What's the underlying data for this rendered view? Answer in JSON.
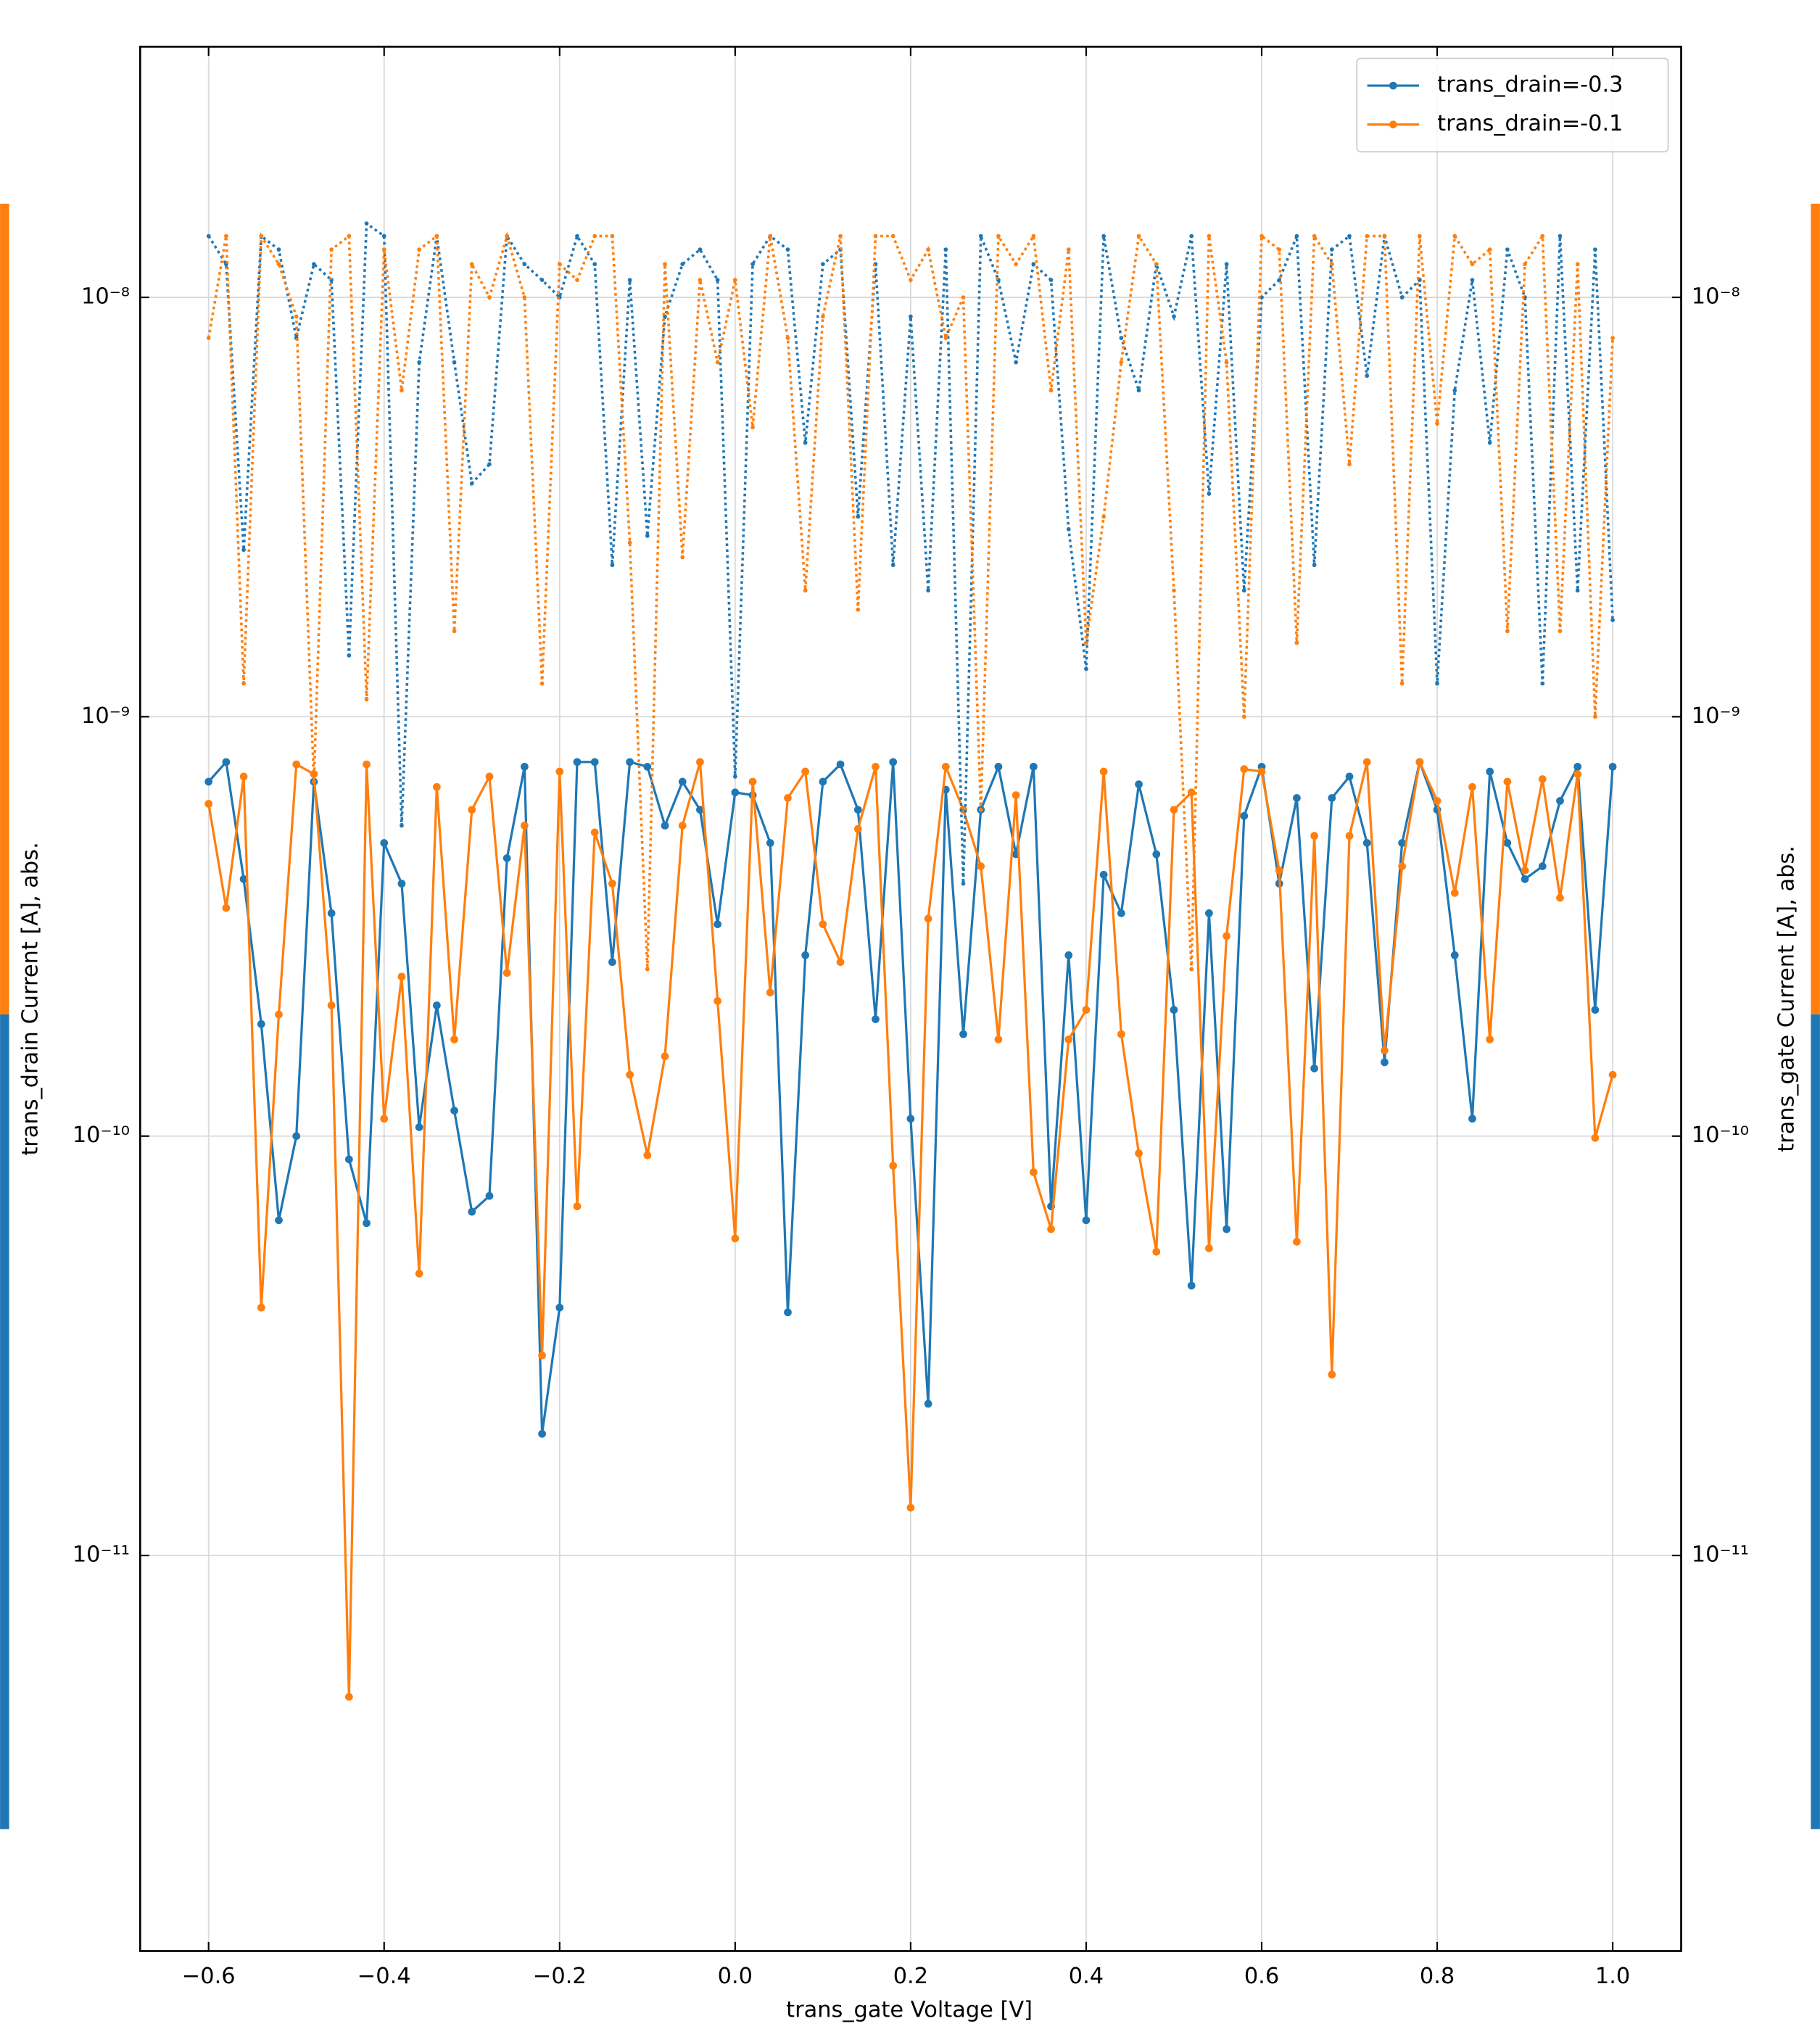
{
  "chart_data": {
    "type": "line",
    "xlabel": "trans_gate Voltage [V]",
    "ylabel": "trans_drain Current [A], abs.",
    "y2label": "trans_gate Current [A], abs.",
    "yscale": "log",
    "grid": true,
    "legend": "upper right",
    "xlim": [
      -0.678,
      1.078
    ],
    "ylim": [
      1.14e-12,
      3.96e-08
    ],
    "y2lim": [
      1.14e-12,
      3.96e-08
    ],
    "xticks": [
      {
        "value": -0.6,
        "label": "−0.6"
      },
      {
        "value": -0.4,
        "label": "−0.4"
      },
      {
        "value": -0.2,
        "label": "−0.2"
      },
      {
        "value": 0,
        "label": "0.0"
      },
      0.2,
      0.4,
      0.6,
      0.8,
      {
        "value": 1,
        "label": "1.0"
      }
    ],
    "yticks": [
      {
        "value": 1e-11,
        "label": "10⁻¹¹"
      },
      {
        "value": 1e-10,
        "label": "10⁻¹⁰"
      },
      {
        "value": 1e-09,
        "label": "10⁻⁹"
      },
      {
        "value": 1e-08,
        "label": "10⁻⁸"
      }
    ],
    "y2ticks": [
      {
        "value": 1e-11,
        "label": "10⁻¹¹"
      },
      {
        "value": 1e-10,
        "label": "10⁻¹⁰"
      },
      {
        "value": 1e-09,
        "label": "10⁻⁹"
      },
      {
        "value": 1e-08,
        "label": "10⁻⁸"
      }
    ],
    "x": [
      -0.6,
      -0.58,
      -0.56,
      -0.54,
      -0.52,
      -0.5,
      -0.48,
      -0.46,
      -0.44,
      -0.42,
      -0.4,
      -0.38,
      -0.36,
      -0.34,
      -0.32,
      -0.3,
      -0.28,
      -0.26,
      -0.24,
      -0.22,
      -0.2,
      -0.18,
      -0.16,
      -0.14,
      -0.12,
      -0.1,
      -0.08,
      -0.06,
      -0.04,
      -0.02,
      0,
      0.02,
      0.04,
      0.06,
      0.08,
      0.1,
      0.12,
      0.14,
      0.16,
      0.18,
      0.2,
      0.22,
      0.24,
      0.26,
      0.28,
      0.3,
      0.32,
      0.34,
      0.36,
      0.38,
      0.4,
      0.42,
      0.44,
      0.46,
      0.48,
      0.5,
      0.52,
      0.54,
      0.56,
      0.58,
      0.6,
      0.62,
      0.64,
      0.66,
      0.68,
      0.7,
      0.72,
      0.74,
      0.76,
      0.78,
      0.8,
      0.82,
      0.84,
      0.86,
      0.88,
      0.9,
      0.92,
      0.94,
      0.96,
      0.98,
      1.0
    ],
    "series": [
      {
        "name": "trans_drain=-0.3",
        "color": "#1f77b4",
        "linestyle": "solid",
        "axis": "y",
        "values": [
          7e-10,
          7.8e-10,
          4.1e-10,
          1.85e-10,
          6.3e-11,
          1e-10,
          7e-10,
          3.4e-10,
          8.8e-11,
          6.2e-11,
          5e-10,
          4e-10,
          1.05e-10,
          2.05e-10,
          1.15e-10,
          6.6e-11,
          7.2e-11,
          4.6e-10,
          7.6e-10,
          1.95e-11,
          3.9e-11,
          7.8e-10,
          7.8e-10,
          2.6e-10,
          7.8e-10,
          7.6e-10,
          5.5e-10,
          7e-10,
          6e-10,
          3.2e-10,
          6.6e-10,
          6.5e-10,
          5e-10,
          3.8e-11,
          2.7e-10,
          7e-10,
          7.7e-10,
          6e-10,
          1.9e-10,
          7.8e-10,
          1.1e-10,
          2.3e-11,
          6.7e-10,
          1.75e-10,
          6e-10,
          7.6e-10,
          4.7e-10,
          7.6e-10,
          6.8e-11,
          2.7e-10,
          6.3e-11,
          4.2e-10,
          3.4e-10,
          6.9e-10,
          4.7e-10,
          2e-10,
          4.4e-11,
          3.4e-10,
          6e-11,
          5.8e-10,
          7.6e-10,
          4e-10,
          6.4e-10,
          1.45e-10,
          6.4e-10,
          7.2e-10,
          5e-10,
          1.5e-10,
          5e-10,
          7.8e-10,
          6e-10,
          2.7e-10,
          1.1e-10,
          7.4e-10,
          5e-10,
          4.1e-10,
          4.4e-10,
          6.3e-10,
          7.6e-10,
          2e-10,
          7.6e-10
        ]
      },
      {
        "name": "trans_drain=-0.1",
        "color": "#ff7f0e",
        "linestyle": "solid",
        "axis": "y",
        "values": [
          6.2e-10,
          3.5e-10,
          7.2e-10,
          3.9e-11,
          1.95e-10,
          7.7e-10,
          7.3e-10,
          2.05e-10,
          4.6e-12,
          7.7e-10,
          1.1e-10,
          2.4e-10,
          4.7e-11,
          6.8e-10,
          1.7e-10,
          6e-10,
          7.2e-10,
          2.45e-10,
          5.5e-10,
          3e-11,
          7.4e-10,
          6.8e-11,
          5.3e-10,
          4e-10,
          1.4e-10,
          9e-11,
          1.55e-10,
          5.5e-10,
          7.8e-10,
          2.1e-10,
          5.7e-11,
          7e-10,
          2.2e-10,
          6.4e-10,
          7.4e-10,
          3.2e-10,
          2.6e-10,
          5.4e-10,
          7.6e-10,
          8.5e-11,
          1.3e-11,
          3.3e-10,
          7.6e-10,
          6e-10,
          4.4e-10,
          1.7e-10,
          6.5e-10,
          8.2e-11,
          6e-11,
          1.7e-10,
          2e-10,
          7.4e-10,
          1.75e-10,
          9.1e-11,
          5.3e-11,
          6e-10,
          6.6e-10,
          5.4e-11,
          3e-10,
          7.5e-10,
          7.4e-10,
          4.3e-10,
          5.6e-11,
          5.2e-10,
          2.7e-11,
          5.2e-10,
          7.8e-10,
          1.6e-10,
          4.4e-10,
          7.8e-10,
          6.3e-10,
          3.8e-10,
          6.8e-10,
          1.7e-10,
          7e-10,
          4.3e-10,
          7.1e-10,
          3.7e-10,
          7.3e-10,
          9.9e-11,
          1.4e-10
        ]
      },
      {
        "color": "#1f77b4",
        "linestyle": "dotted",
        "axis": "y2",
        "values": [
          1.4e-08,
          1.2e-08,
          2.5e-09,
          1.4e-08,
          1.3e-08,
          8e-09,
          1.2e-08,
          1.1e-08,
          1.4e-09,
          1.5e-08,
          1.4e-08,
          5.5e-10,
          7e-09,
          1.4e-08,
          7e-09,
          3.6e-09,
          4e-09,
          1.4e-08,
          1.2e-08,
          1.1e-08,
          1e-08,
          1.4e-08,
          1.2e-08,
          2.3e-09,
          1.1e-08,
          2.7e-09,
          9e-09,
          1.2e-08,
          1.3e-08,
          1.1e-08,
          7.2e-10,
          1.2e-08,
          1.4e-08,
          1.3e-08,
          4.5e-09,
          1.2e-08,
          1.3e-08,
          3e-09,
          1.2e-08,
          2.3e-09,
          9e-09,
          2e-09,
          1.3e-08,
          4e-10,
          1.4e-08,
          1.1e-08,
          7e-09,
          1.2e-08,
          1.1e-08,
          2.8e-09,
          1.3e-09,
          1.4e-08,
          8e-09,
          6e-09,
          1.2e-08,
          9e-09,
          1.4e-08,
          3.4e-09,
          1.2e-08,
          2e-09,
          1e-08,
          1.1e-08,
          1.4e-08,
          2.3e-09,
          1.3e-08,
          1.4e-08,
          6.5e-09,
          1.4e-08,
          1e-08,
          1.1e-08,
          1.2e-09,
          6e-09,
          1.1e-08,
          4.5e-09,
          1.3e-08,
          1e-08,
          1.2e-09,
          1.4e-08,
          2e-09,
          1.3e-08,
          1.7e-09
        ]
      },
      {
        "color": "#ff7f0e",
        "linestyle": "dotted",
        "axis": "y2",
        "values": [
          8e-09,
          1.4e-08,
          1.2e-09,
          1.4e-08,
          1.2e-08,
          9e-09,
          7e-10,
          1.3e-08,
          1.4e-08,
          1.1e-09,
          1.3e-08,
          6e-09,
          1.3e-08,
          1.4e-08,
          1.6e-09,
          1.2e-08,
          1e-08,
          1.4e-08,
          1e-08,
          1.2e-09,
          1.2e-08,
          1.1e-08,
          1.4e-08,
          1.4e-08,
          2.6e-09,
          2.5e-10,
          1.2e-08,
          2.4e-09,
          1.1e-08,
          7e-09,
          1.1e-08,
          4.9e-09,
          1.4e-08,
          8e-09,
          2e-09,
          9e-09,
          1.4e-08,
          1.8e-09,
          1.4e-08,
          1.4e-08,
          1.1e-08,
          1.3e-08,
          8e-09,
          1e-08,
          6e-10,
          1.4e-08,
          1.2e-08,
          1.4e-08,
          6e-09,
          1.3e-08,
          1.5e-09,
          3e-09,
          7e-09,
          1.4e-08,
          1.2e-08,
          2e-09,
          2.5e-10,
          1.4e-08,
          7e-09,
          1e-09,
          1.4e-08,
          1.3e-08,
          1.5e-09,
          1.4e-08,
          1.2e-08,
          4e-09,
          1.4e-08,
          1.4e-08,
          1.2e-09,
          1.4e-08,
          5e-09,
          1.4e-08,
          1.2e-08,
          1.3e-08,
          1.6e-09,
          1.2e-08,
          1.4e-08,
          1.6e-09,
          1.2e-08,
          1e-09,
          8e-09
        ]
      }
    ]
  }
}
